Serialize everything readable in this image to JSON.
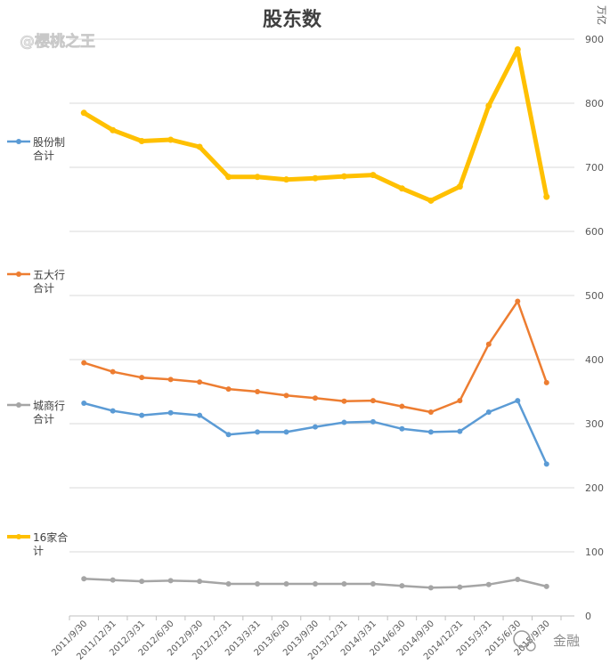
{
  "chart_data": {
    "type": "line",
    "title": "股东数",
    "unit_label": "万亿",
    "watermark": "@樱桃之王",
    "brand_logo": "金融",
    "categories": [
      "2011/9/30",
      "2011/12/31",
      "2012/3/31",
      "2012/6/30",
      "2012/9/30",
      "2012/12/31",
      "2013/3/31",
      "2013/6/30",
      "2013/9/30",
      "2013/12/31",
      "2014/3/31",
      "2014/6/30",
      "2014/9/30",
      "2014/12/31",
      "2015/3/31",
      "2015/6/30",
      "2015/9/30"
    ],
    "y_axis": {
      "min": 0,
      "max": 900,
      "ticks": [
        0,
        100,
        200,
        300,
        400,
        500,
        600,
        700,
        800,
        900
      ]
    },
    "grid": true,
    "series": [
      {
        "name": "股份制合计",
        "legend_lines": [
          "股份制",
          "合计"
        ],
        "color": "#5b9bd5",
        "values": [
          332,
          320,
          313,
          317,
          313,
          283,
          287,
          287,
          295,
          302,
          303,
          292,
          287,
          288,
          318,
          336,
          237
        ]
      },
      {
        "name": "五大行合计",
        "legend_lines": [
          "五大行",
          "合计"
        ],
        "color": "#ed7d31",
        "values": [
          395,
          381,
          372,
          369,
          365,
          354,
          350,
          344,
          340,
          335,
          336,
          327,
          318,
          336,
          424,
          491,
          364
        ]
      },
      {
        "name": "城商行合计",
        "legend_lines": [
          "城商行",
          "合计"
        ],
        "color": "#a5a5a5",
        "values": [
          58,
          56,
          54,
          55,
          54,
          50,
          50,
          50,
          50,
          50,
          50,
          47,
          44,
          45,
          49,
          57,
          46
        ]
      },
      {
        "name": "16家合计",
        "legend_lines": [
          "16家合",
          "计"
        ],
        "color": "#ffc000",
        "values": [
          785,
          758,
          741,
          743,
          732,
          685,
          685,
          681,
          683,
          686,
          688,
          667,
          648,
          670,
          796,
          884,
          654
        ]
      }
    ]
  }
}
